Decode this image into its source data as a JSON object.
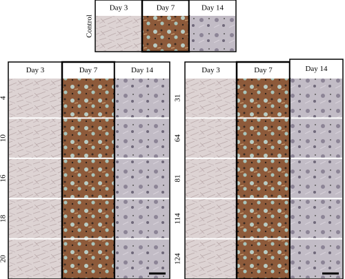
{
  "control": {
    "row_label": "Control",
    "columns": [
      "Day 3",
      "Day 7",
      "Day 14"
    ]
  },
  "left_panel": {
    "columns": [
      "Day 3",
      "Day 7",
      "Day 14"
    ],
    "rows": [
      4,
      10,
      16,
      18,
      20
    ]
  },
  "right_panel": {
    "columns": [
      "Day 3",
      "Day 7",
      "Day 14"
    ],
    "rows": [
      31,
      64,
      81,
      114,
      124
    ]
  }
}
